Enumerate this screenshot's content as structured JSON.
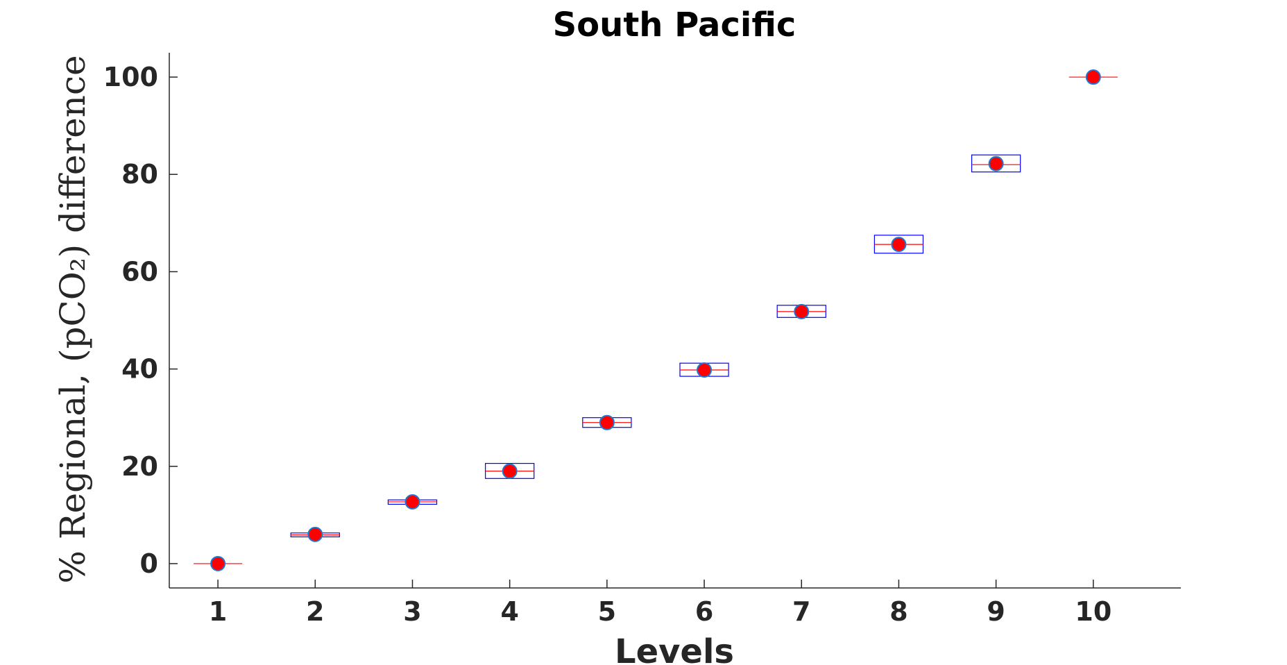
{
  "chart_data": {
    "type": "box",
    "title": "South Pacific",
    "xlabel": "Levels",
    "ylabel": "% Regional, (pCO₂) difference",
    "xlim": [
      0.5,
      10.9
    ],
    "ylim": [
      -5,
      105
    ],
    "x_ticks": [
      1,
      2,
      3,
      4,
      5,
      6,
      7,
      8,
      9,
      10
    ],
    "y_ticks": [
      0,
      20,
      40,
      60,
      80,
      100
    ],
    "grid": false,
    "categories": [
      1,
      2,
      3,
      4,
      5,
      6,
      7,
      8,
      9,
      10
    ],
    "boxes": [
      {
        "level": 1,
        "q1": 0.0,
        "median": 0.0,
        "q3": 0.0
      },
      {
        "level": 2,
        "q1": 5.5,
        "median": 5.9,
        "q3": 6.3
      },
      {
        "level": 3,
        "q1": 12.2,
        "median": 12.7,
        "q3": 13.1
      },
      {
        "level": 4,
        "q1": 17.5,
        "median": 19.0,
        "q3": 20.6
      },
      {
        "level": 5,
        "q1": 28.0,
        "median": 29.0,
        "q3": 30.0
      },
      {
        "level": 6,
        "q1": 38.5,
        "median": 39.8,
        "q3": 41.2
      },
      {
        "level": 7,
        "q1": 50.6,
        "median": 51.8,
        "q3": 53.1
      },
      {
        "level": 8,
        "q1": 63.8,
        "median": 65.6,
        "q3": 67.5
      },
      {
        "level": 9,
        "q1": 80.5,
        "median": 82.0,
        "q3": 84.0
      },
      {
        "level": 10,
        "q1": 100.0,
        "median": 100.0,
        "q3": 100.0
      }
    ],
    "means": [
      0.0,
      6.0,
      12.7,
      19.0,
      29.0,
      39.8,
      51.8,
      65.6,
      82.2,
      100.0
    ],
    "colors": {
      "box": "#0000ff",
      "median": "#ff0000",
      "marker_fill": "#ff0000",
      "marker_edge": "#1f77d4",
      "axis": "#262626"
    }
  }
}
